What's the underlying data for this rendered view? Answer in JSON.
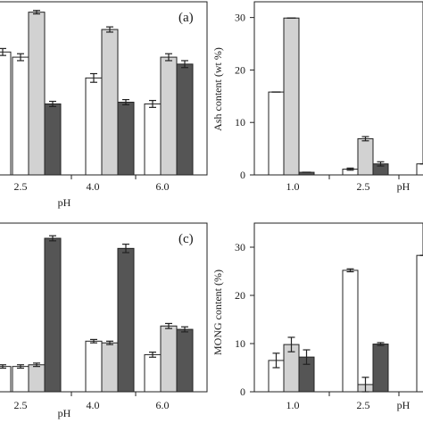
{
  "chart_data": [
    {
      "type": "bar",
      "panel_label": "(a)",
      "categories": [
        "2.5",
        "4.0",
        "6.0"
      ],
      "xlabel": "pH",
      "ylabel": "",
      "ylim": [
        0,
        100
      ],
      "yticks": [],
      "series": [
        {
          "color": "#ffffff",
          "values": [
            68,
            56,
            41
          ],
          "errors": [
            2,
            2.5,
            2
          ]
        },
        {
          "color": "#d2d2d2",
          "values": [
            94,
            84,
            68
          ],
          "errors": [
            1,
            1.5,
            2
          ]
        },
        {
          "color": "#555555",
          "values": [
            41,
            42,
            64
          ],
          "errors": [
            1.5,
            1.5,
            2
          ]
        }
      ],
      "leading_bar": {
        "color": "#ffffff",
        "value": 71,
        "error": 2
      }
    },
    {
      "type": "bar",
      "panel_label": "",
      "categories": [
        "1.0",
        "2.5",
        "pH"
      ],
      "xlabel": "",
      "ylabel": "Ash content (wt %)",
      "ylim": [
        0,
        33
      ],
      "yticks": [
        "0",
        "10",
        "20",
        "30"
      ],
      "series": [
        {
          "color": "#ffffff",
          "values": [
            15.8,
            1.1,
            2.1
          ],
          "errors": [
            0,
            0.2,
            0
          ]
        },
        {
          "color": "#d2d2d2",
          "values": [
            29.9,
            6.9,
            null
          ],
          "errors": [
            0,
            0.4,
            0
          ]
        },
        {
          "color": "#555555",
          "values": [
            0.5,
            2.1,
            null
          ],
          "errors": [
            0,
            0.4,
            0
          ]
        }
      ]
    },
    {
      "type": "bar",
      "panel_label": "(c)",
      "categories": [
        "2.5",
        "4.0",
        "6.0"
      ],
      "xlabel": "pH",
      "ylabel": "",
      "ylim": [
        0,
        100
      ],
      "yticks": [],
      "series": [
        {
          "color": "#ffffff",
          "values": [
            15,
            30,
            22
          ],
          "errors": [
            1,
            1,
            1.5
          ]
        },
        {
          "color": "#d2d2d2",
          "values": [
            16,
            29,
            39
          ],
          "errors": [
            1,
            1,
            1.5
          ]
        },
        {
          "color": "#555555",
          "values": [
            91,
            85,
            37
          ],
          "errors": [
            1.5,
            2.5,
            1.5
          ]
        }
      ],
      "leading_bar": {
        "color": "#ffffff",
        "value": 15,
        "error": 1
      }
    },
    {
      "type": "bar",
      "panel_label": "",
      "categories": [
        "1.0",
        "2.5",
        "pH"
      ],
      "xlabel": "",
      "ylabel": "MONG content (%)",
      "ylim": [
        0,
        35
      ],
      "yticks": [
        "0",
        "10",
        "20",
        "30"
      ],
      "series": [
        {
          "color": "#ffffff",
          "values": [
            6.5,
            25.2,
            28.3
          ],
          "errors": [
            1.5,
            0.3,
            0
          ]
        },
        {
          "color": "#d2d2d2",
          "values": [
            9.8,
            1.5,
            null
          ],
          "errors": [
            1.5,
            1.5,
            0
          ]
        },
        {
          "color": "#555555",
          "values": [
            7.2,
            9.9,
            null
          ],
          "errors": [
            1.5,
            0.3,
            0
          ]
        }
      ]
    }
  ]
}
